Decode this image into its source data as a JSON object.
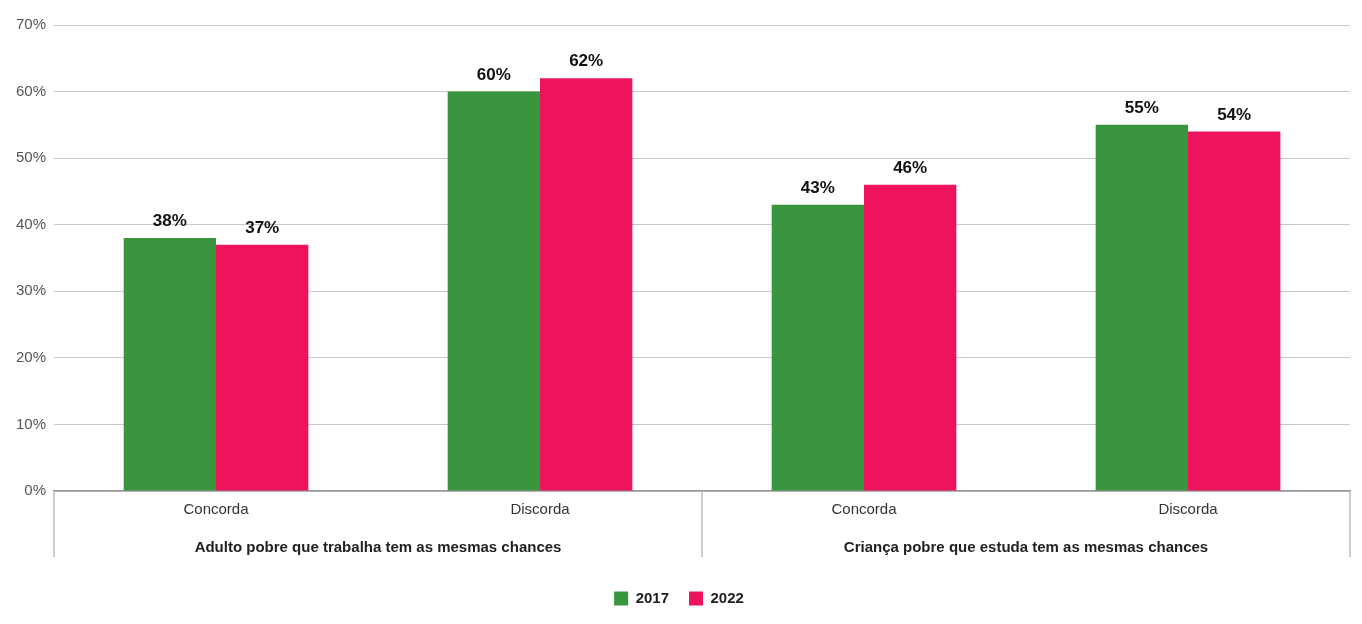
{
  "chart_data": {
    "type": "bar",
    "categories": [
      "Concorda",
      "Discorda",
      "Concorda",
      "Discorda"
    ],
    "series": [
      {
        "name": "2017",
        "color": "#3a963e",
        "values": [
          38,
          60,
          43,
          55
        ],
        "value_labels": [
          "38%",
          "60%",
          "43%",
          "55%"
        ]
      },
      {
        "name": "2022",
        "color": "#ee145b",
        "values": [
          37,
          62,
          46,
          54
        ],
        "value_labels": [
          "37%",
          "62%",
          "46%",
          "54%"
        ]
      }
    ],
    "annotations": [
      "Adulto pobre que trabalha tem as mesmas chances",
      "Criança pobre que estuda tem as mesmas chances"
    ],
    "ylim": [
      0,
      70
    ],
    "yticks": [
      {
        "value": 0,
        "label": "0%"
      },
      {
        "value": 10,
        "label": "10%"
      },
      {
        "value": 20,
        "label": "20%"
      },
      {
        "value": 30,
        "label": "30%"
      },
      {
        "value": 40,
        "label": "40%"
      },
      {
        "value": 50,
        "label": "50%"
      },
      {
        "value": 60,
        "label": "60%"
      },
      {
        "value": 70,
        "label": "70%"
      }
    ],
    "grid": "y",
    "legend": "bottom"
  }
}
